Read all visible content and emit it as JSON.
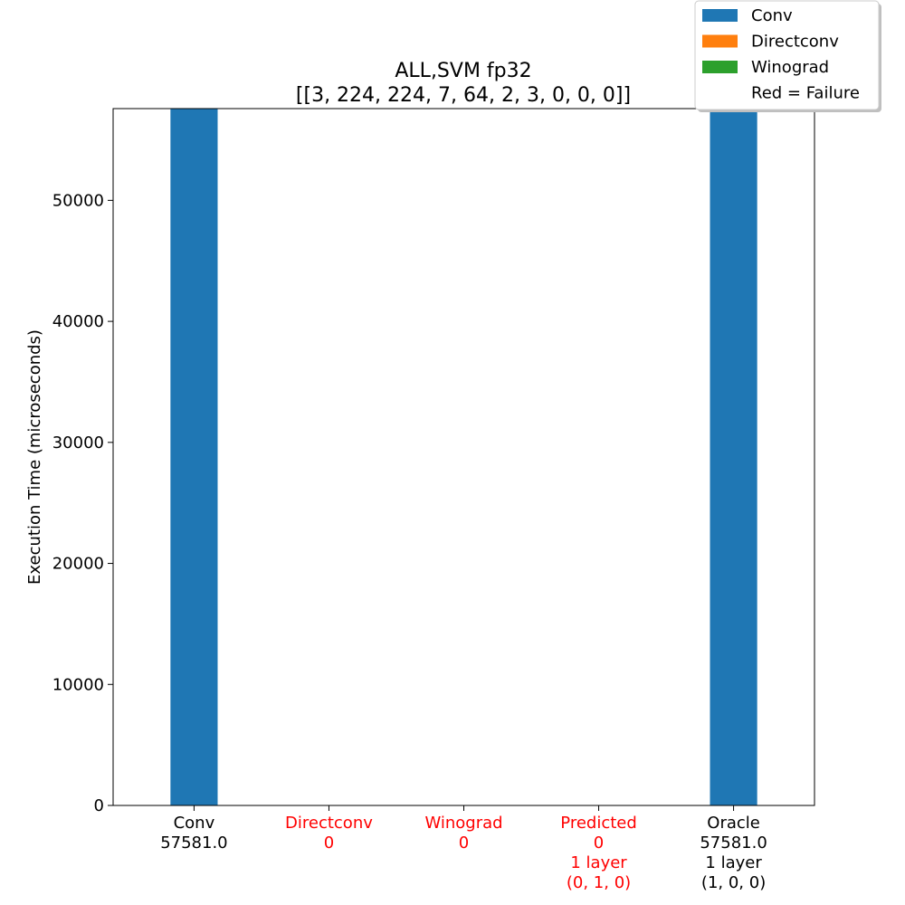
{
  "chart_data": {
    "type": "bar",
    "title_line1": "ALL,SVM fp32",
    "title_line2": "[[3, 224, 224, 7, 64, 2, 3, 0, 0, 0]]",
    "ylabel": "Execution Time (microseconds)",
    "xlabel": "",
    "ylim": [
      0,
      57581
    ],
    "yticks": [
      0,
      10000,
      20000,
      30000,
      40000,
      50000
    ],
    "grid": false,
    "legend_placement": "top-right",
    "categories": [
      {
        "lines": [
          "Conv",
          "57581.0"
        ],
        "failure": false,
        "value": 57581.0,
        "series": "Conv"
      },
      {
        "lines": [
          "Directconv",
          "0"
        ],
        "failure": true,
        "value": 0,
        "series": "Directconv"
      },
      {
        "lines": [
          "Winograd",
          "0"
        ],
        "failure": true,
        "value": 0,
        "series": "Winograd"
      },
      {
        "lines": [
          "Predicted",
          "0",
          "1 layer",
          "(0, 1, 0)"
        ],
        "failure": true,
        "value": 0,
        "series": "Conv"
      },
      {
        "lines": [
          "Oracle",
          "57581.0",
          "1 layer",
          "(1, 0, 0)"
        ],
        "failure": false,
        "value": 57581.0,
        "series": "Conv"
      }
    ],
    "series": [
      {
        "name": "Conv",
        "color": "#1f77b4"
      },
      {
        "name": "Directconv",
        "color": "#ff7f0e"
      },
      {
        "name": "Winograd",
        "color": "#2ca02c"
      }
    ],
    "legend_note": "Red = Failure",
    "failure_color": "#ff0000",
    "normal_color": "#000000"
  }
}
